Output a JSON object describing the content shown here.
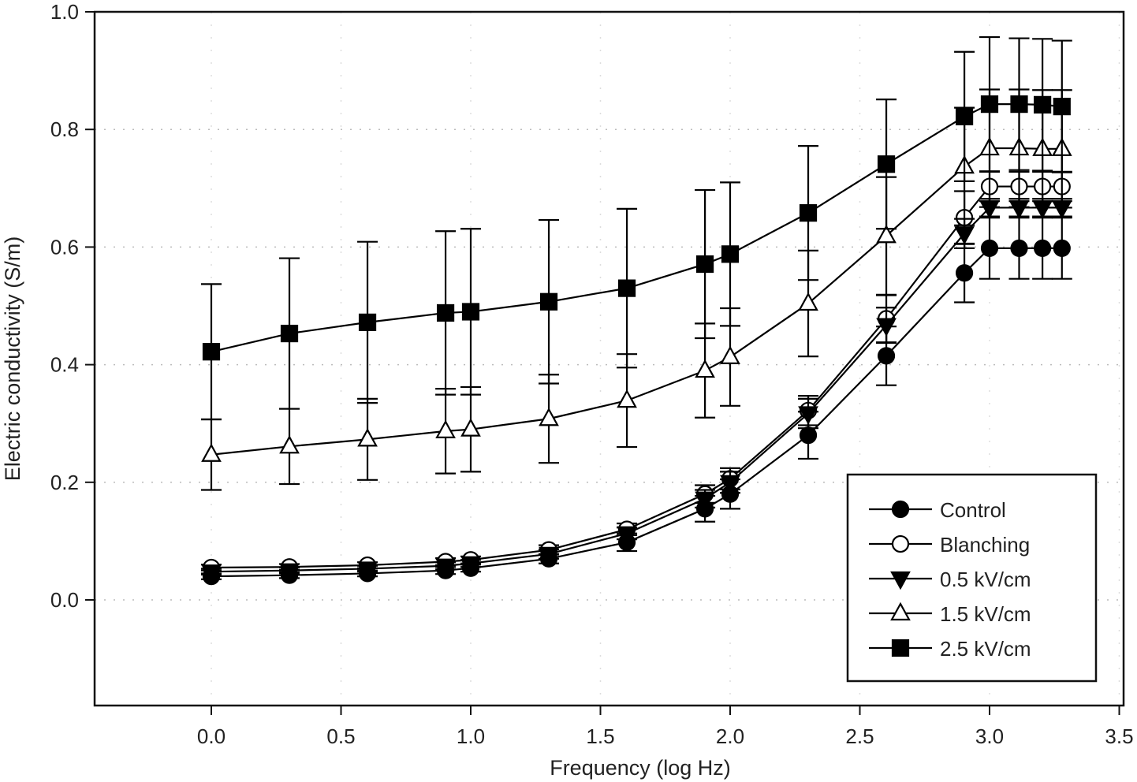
{
  "chart_data": {
    "type": "line",
    "title": "",
    "xlabel": "Frequency (log Hz)",
    "ylabel": "Electric conductivity (S/m)",
    "xlim": [
      -0.45,
      3.5
    ],
    "ylim": [
      -0.18,
      1.0
    ],
    "xticks": [
      "0.0",
      "0.5",
      "1.0",
      "1.5",
      "2.0",
      "2.5",
      "3.0",
      "3.5"
    ],
    "xtick_values": [
      0,
      0.5,
      1,
      1.5,
      2,
      2.5,
      3,
      3.5
    ],
    "yticks": [
      "0.0",
      "0.2",
      "0.4",
      "0.6",
      "0.8",
      "1.0"
    ],
    "ytick_values": [
      0,
      0.2,
      0.4,
      0.6,
      0.8,
      1.0
    ],
    "grid": true,
    "legend_position": "bottom-right",
    "x": [
      0,
      0.301,
      0.602,
      0.903,
      1.0,
      1.301,
      1.602,
      1.903,
      2.0,
      2.301,
      2.602,
      2.903,
      3.0,
      3.114,
      3.204,
      3.279
    ],
    "series": [
      {
        "name": "Control",
        "marker": "circle-filled",
        "values": [
          0.04,
          0.042,
          0.045,
          0.05,
          0.054,
          0.07,
          0.098,
          0.155,
          0.18,
          0.28,
          0.415,
          0.556,
          0.598,
          0.598,
          0.598,
          0.598
        ],
        "errors": [
          0.005,
          0.005,
          0.005,
          0.006,
          0.006,
          0.008,
          0.015,
          0.022,
          0.025,
          0.04,
          0.05,
          0.05,
          0.052,
          0.052,
          0.052,
          0.052
        ]
      },
      {
        "name": "Blanching",
        "marker": "circle-open",
        "values": [
          0.055,
          0.056,
          0.059,
          0.065,
          0.068,
          0.085,
          0.12,
          0.18,
          0.206,
          0.322,
          0.478,
          0.65,
          0.703,
          0.703,
          0.703,
          0.703
        ],
        "errors": [
          0.005,
          0.005,
          0.005,
          0.006,
          0.006,
          0.008,
          0.01,
          0.015,
          0.018,
          0.025,
          0.04,
          0.045,
          0.025,
          0.025,
          0.025,
          0.025
        ]
      },
      {
        "name": "0.5 kV/cm",
        "marker": "triangle-down-filled",
        "values": [
          0.048,
          0.05,
          0.053,
          0.058,
          0.062,
          0.078,
          0.113,
          0.172,
          0.2,
          0.317,
          0.467,
          0.623,
          0.667,
          0.667,
          0.667,
          0.667
        ],
        "errors": [
          0.005,
          0.005,
          0.005,
          0.006,
          0.006,
          0.008,
          0.01,
          0.015,
          0.018,
          0.025,
          0.03,
          0.025,
          0.015,
          0.015,
          0.015,
          0.015
        ]
      },
      {
        "name": "1.5 kV/cm",
        "marker": "triangle-up-open",
        "values": [
          0.247,
          0.261,
          0.273,
          0.287,
          0.29,
          0.308,
          0.339,
          0.39,
          0.413,
          0.504,
          0.619,
          0.737,
          0.768,
          0.768,
          0.767,
          0.767
        ],
        "errors": [
          0.06,
          0.064,
          0.069,
          0.072,
          0.072,
          0.075,
          0.079,
          0.08,
          0.083,
          0.09,
          0.1,
          0.1,
          0.1,
          0.1,
          0.1,
          0.1
        ]
      },
      {
        "name": "2.5 kV/cm",
        "marker": "square-filled",
        "values": [
          0.422,
          0.453,
          0.472,
          0.488,
          0.49,
          0.507,
          0.53,
          0.571,
          0.588,
          0.658,
          0.741,
          0.822,
          0.843,
          0.843,
          0.842,
          0.839
        ],
        "errors": [
          0.115,
          0.128,
          0.137,
          0.139,
          0.141,
          0.139,
          0.135,
          0.126,
          0.122,
          0.114,
          0.11,
          0.11,
          0.114,
          0.112,
          0.112,
          0.112
        ]
      }
    ]
  }
}
